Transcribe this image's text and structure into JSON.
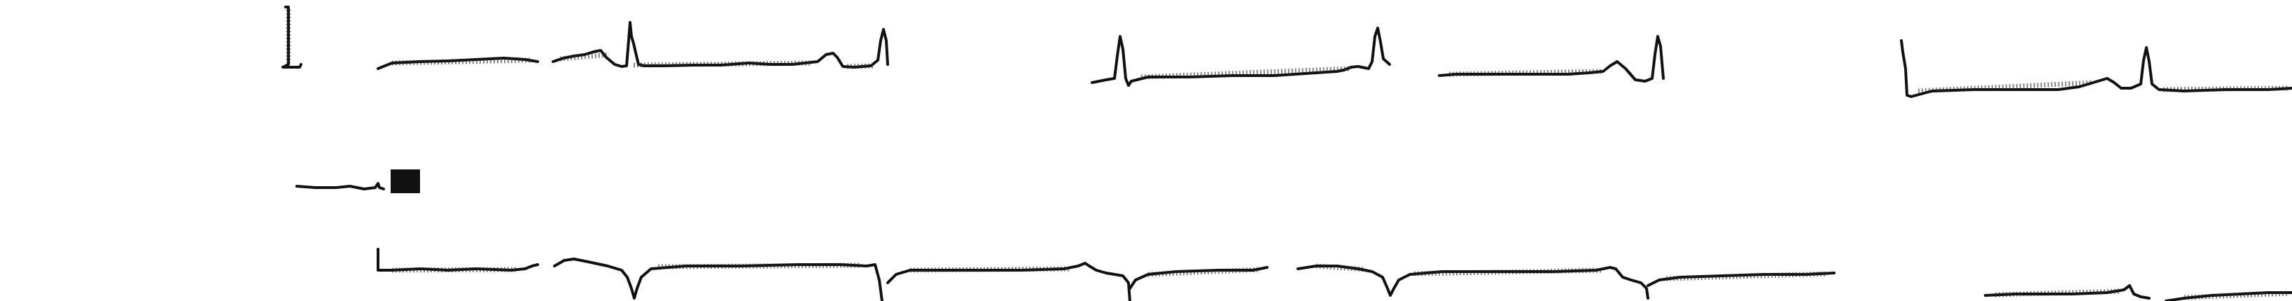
{
  "document": {
    "kind": "ecg-strip-scan",
    "printed_text": []
  },
  "colors": {
    "ink": "#111111",
    "paper": "#ffffff"
  }
}
